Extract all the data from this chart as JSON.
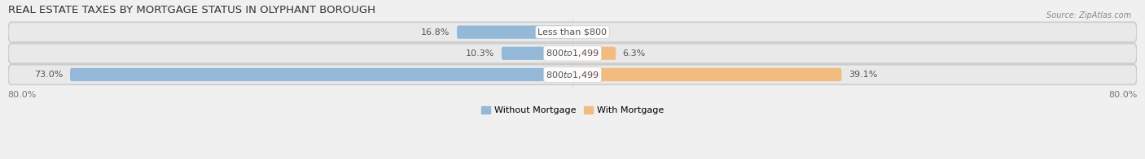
{
  "title": "REAL ESTATE TAXES BY MORTGAGE STATUS IN OLYPHANT BOROUGH",
  "source": "Source: ZipAtlas.com",
  "categories": [
    "Less than $800",
    "$800 to $1,499",
    "$800 to $1,499"
  ],
  "without_mortgage": [
    16.8,
    10.3,
    73.0
  ],
  "with_mortgage": [
    0.0,
    6.3,
    39.1
  ],
  "color_without": "#93b8d8",
  "color_with": "#f2bc80",
  "xlim_left": -82,
  "xlim_right": 82,
  "bar_height": 0.62,
  "label_fontsize": 8.0,
  "title_fontsize": 9.5,
  "source_fontsize": 7.0,
  "legend_fontsize": 8.0,
  "legend_labels": [
    "Without Mortgage",
    "With Mortgage"
  ],
  "row_bg": "#e6e6e6",
  "row_bg_top": "#f0f0f0",
  "fig_bg": "#f0f0f0"
}
